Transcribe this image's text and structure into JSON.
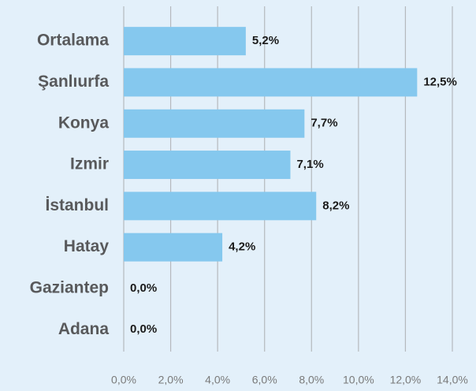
{
  "chart_data": {
    "type": "bar",
    "orientation": "horizontal",
    "categories": [
      "Ortalama",
      "Şanlıurfa",
      "Konya",
      "Izmir",
      "İstanbul",
      "Hatay",
      "Gaziantep",
      "Adana"
    ],
    "values": [
      5.2,
      12.5,
      7.7,
      7.1,
      8.2,
      4.2,
      0.0,
      0.0
    ],
    "value_labels": [
      "5,2%",
      "12,5%",
      "7,7%",
      "7,1%",
      "8,2%",
      "4,2%",
      "0,0%",
      "0,0%"
    ],
    "color": "#85c8ee",
    "xlim": [
      0,
      14
    ],
    "xticks": [
      {
        "value": 0,
        "label": "0,0%"
      },
      {
        "value": 2,
        "label": "2,0%"
      },
      {
        "value": 4,
        "label": "4,0%"
      },
      {
        "value": 6,
        "label": "6,0%"
      },
      {
        "value": 8,
        "label": "8,0%"
      },
      {
        "value": 10,
        "label": "10,0%"
      },
      {
        "value": 12,
        "label": "12,0%"
      },
      {
        "value": 14,
        "label": "14,0%"
      }
    ],
    "grid": true
  }
}
